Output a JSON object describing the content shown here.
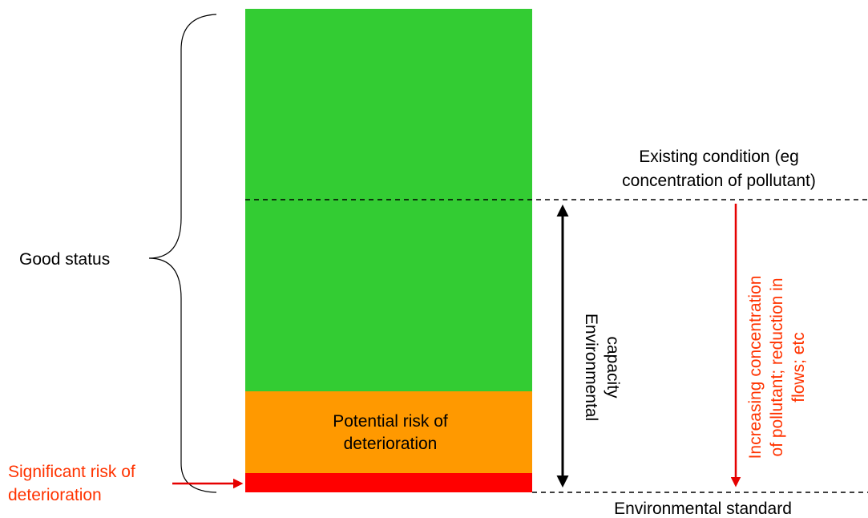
{
  "diagram": {
    "good_status_label": "Good status",
    "potential_risk_line1": "Potential risk of",
    "potential_risk_line2": "deterioration",
    "significant_risk_line1": "Significant risk of",
    "significant_risk_line2": "deterioration",
    "existing_condition_line1": "Existing condition (eg",
    "existing_condition_line2": "concentration of pollutant)",
    "environmental_standard": "Environmental standard",
    "capacity_line1": "Environmental",
    "capacity_line2": "capacity",
    "increasing_line1": "Increasing concentration",
    "increasing_line2": "of pollutant; reduction in",
    "increasing_line3": "flows; etc"
  },
  "colors": {
    "good": "#33cc33",
    "potential_risk": "#ff9900",
    "significant_risk": "#ff0000",
    "red_text": "#ff3300",
    "arrow_red": "#e60000",
    "black": "#000000"
  }
}
